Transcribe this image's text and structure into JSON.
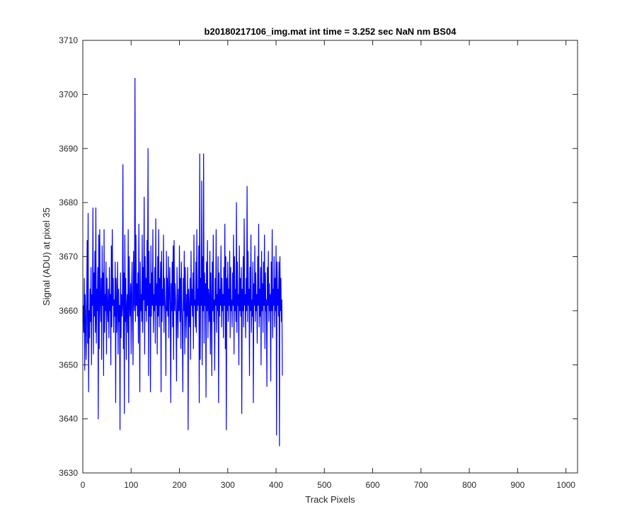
{
  "chart_data": {
    "type": "line",
    "title": "b20180217106_img.mat int time = 3.252 sec  NaN nm BS04",
    "xlabel": "Track Pixels",
    "ylabel": "Signal (ADU) at pixel 35",
    "xlim": [
      0,
      1024
    ],
    "ylim": [
      3630,
      3710
    ],
    "xticks": [
      0,
      100,
      200,
      300,
      400,
      500,
      600,
      700,
      800,
      900,
      1000
    ],
    "yticks": [
      3630,
      3640,
      3650,
      3660,
      3670,
      3680,
      3690,
      3700,
      3710
    ],
    "grid": false,
    "series": [
      {
        "color": "#0000ff",
        "x_start": 1,
        "x_step": 1,
        "values": [
          3661,
          3656,
          3666,
          3649,
          3663,
          3658,
          3651,
          3662,
          3673,
          3654,
          3678,
          3645,
          3660,
          3655,
          3664,
          3658,
          3668,
          3650,
          3663,
          3661,
          3679,
          3652,
          3667,
          3659,
          3671,
          3656,
          3679,
          3654,
          3664,
          3660,
          3668,
          3640,
          3674,
          3653,
          3675,
          3662,
          3658,
          3666,
          3651,
          3672,
          3661,
          3667,
          3648,
          3675,
          3656,
          3663,
          3660,
          3669,
          3652,
          3666,
          3661,
          3658,
          3664,
          3655,
          3668,
          3660,
          3663,
          3650,
          3672,
          3657,
          3675,
          3661,
          3666,
          3656,
          3662,
          3659,
          3669,
          3643,
          3666,
          3656,
          3661,
          3669,
          3652,
          3664,
          3658,
          3661,
          3638,
          3667,
          3655,
          3663,
          3659,
          3661,
          3687,
          3653,
          3667,
          3641,
          3674,
          3658,
          3666,
          3651,
          3661,
          3663,
          3656,
          3675,
          3643,
          3670,
          3661,
          3659,
          3665,
          3652,
          3664,
          3669,
          3658,
          3650,
          3671,
          3662,
          3660,
          3703,
          3658,
          3674,
          3661,
          3665,
          3659,
          3667,
          3654,
          3676,
          3661,
          3645,
          3669,
          3660,
          3663,
          3658,
          3674,
          3656,
          3668,
          3662,
          3681,
          3652,
          3670,
          3660,
          3666,
          3658,
          3673,
          3661,
          3690,
          3648,
          3671,
          3659,
          3665,
          3645,
          3672,
          3659,
          3667,
          3661,
          3675,
          3656,
          3663,
          3660,
          3668,
          3654,
          3677,
          3661,
          3665,
          3652,
          3670,
          3659,
          3675,
          3657,
          3666,
          3661,
          3669,
          3645,
          3671,
          3658,
          3664,
          3661,
          3674,
          3656,
          3666,
          3662,
          3660,
          3648,
          3671,
          3660,
          3666,
          3659,
          3670,
          3655,
          3663,
          3668,
          3661,
          3643,
          3665,
          3660,
          3669,
          3657,
          3672,
          3651,
          3673,
          3660,
          3665,
          3662,
          3659,
          3647,
          3668,
          3661,
          3655,
          3664,
          3660,
          3672,
          3658,
          3666,
          3653,
          3669,
          3661,
          3657,
          3645,
          3666,
          3660,
          3671,
          3652,
          3668,
          3661,
          3655,
          3663,
          3659,
          3668,
          3638,
          3664,
          3660,
          3657,
          3666,
          3651,
          3671,
          3661,
          3664,
          3659,
          3667,
          3653,
          3674,
          3661,
          3662,
          3657,
          3669,
          3656,
          3675,
          3660,
          3664,
          3661,
          3672,
          3643,
          3689,
          3651,
          3666,
          3661,
          3684,
          3650,
          3670,
          3660,
          3689,
          3654,
          3667,
          3661,
          3665,
          3644,
          3669,
          3660,
          3673,
          3655,
          3664,
          3662,
          3658,
          3671,
          3652,
          3667,
          3661,
          3648,
          3669,
          3660,
          3674,
          3658,
          3662,
          3649,
          3666,
          3661,
          3675,
          3656,
          3663,
          3660,
          3670,
          3643,
          3667,
          3659,
          3664,
          3661,
          3672,
          3657,
          3666,
          3660,
          3663,
          3655,
          3668,
          3661,
          3676,
          3653,
          3670,
          3638,
          3666,
          3660,
          3669,
          3658,
          3664,
          3661,
          3671,
          3655,
          3668,
          3660,
          3662,
          3657,
          3667,
          3661,
          3674,
          3652,
          3670,
          3660,
          3664,
          3658,
          3680,
          3656,
          3669,
          3661,
          3663,
          3650,
          3672,
          3660,
          3666,
          3659,
          3668,
          3641,
          3664,
          3660,
          3670,
          3657,
          3677,
          3661,
          3663,
          3655,
          3666,
          3660,
          3683,
          3658,
          3671,
          3661,
          3664,
          3648,
          3668,
          3660,
          3674,
          3656,
          3662,
          3659,
          3669,
          3643,
          3665,
          3661,
          3672,
          3658,
          3667,
          3660,
          3663,
          3654,
          3670,
          3661,
          3676,
          3657,
          3664,
          3659,
          3668,
          3650,
          3671,
          3660,
          3665,
          3656,
          3669,
          3661,
          3674,
          3653,
          3667,
          3660,
          3662,
          3646,
          3668,
          3661,
          3671,
          3658,
          3665,
          3660,
          3663,
          3647,
          3669,
          3660,
          3675,
          3655,
          3664,
          3661,
          3670,
          3657,
          3666,
          3660,
          3672,
          3637,
          3669,
          3661,
          3664,
          3659,
          3669,
          3635,
          3670,
          3660,
          3666,
          3658,
          3662,
          3648
        ]
      }
    ]
  }
}
